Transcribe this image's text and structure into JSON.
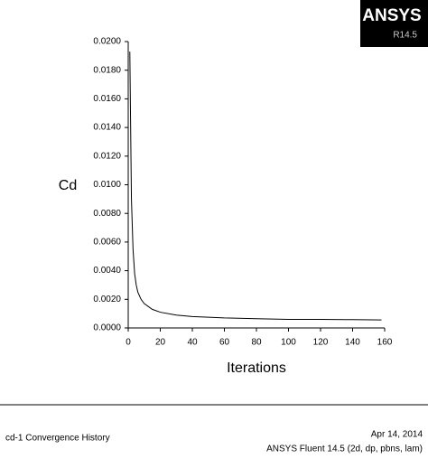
{
  "chart_data": {
    "type": "line",
    "y_label": "Cd",
    "x_label": "Iterations",
    "x": [
      1,
      2,
      3,
      4,
      5,
      6,
      8,
      10,
      15,
      20,
      30,
      40,
      60,
      80,
      100,
      120,
      140,
      158
    ],
    "series": [
      {
        "name": "cd-1",
        "color": "#000000",
        "values": [
          0.0193,
          0.009,
          0.0055,
          0.0038,
          0.003,
          0.0025,
          0.002,
          0.0017,
          0.0013,
          0.0011,
          0.0009,
          0.0008,
          0.0007,
          0.00065,
          0.0006,
          0.0006,
          0.00058,
          0.00056
        ]
      }
    ],
    "xlim": [
      0,
      160
    ],
    "xticks": [
      0,
      20,
      40,
      60,
      80,
      100,
      120,
      140,
      160
    ],
    "ylim": [
      0,
      0.02
    ],
    "yticks": [
      {
        "value": 0,
        "label": "0.0000"
      },
      {
        "value": 0.002,
        "label": "0.0020"
      },
      {
        "value": 0.004,
        "label": "0.0040"
      },
      {
        "value": 0.006,
        "label": "0.0060"
      },
      {
        "value": 0.008,
        "label": "0.0080"
      },
      {
        "value": 0.01,
        "label": "0.0100"
      },
      {
        "value": 0.012,
        "label": "0.0120"
      },
      {
        "value": 0.014,
        "label": "0.0140"
      },
      {
        "value": 0.016,
        "label": "0.0160"
      },
      {
        "value": 0.018,
        "label": "0.0180"
      },
      {
        "value": 0.02,
        "label": "0.0200"
      }
    ],
    "grid": false
  },
  "logo": {
    "brand": "ANSYS",
    "version": "R14.5"
  },
  "footer": {
    "title": "cd-1 Convergence History",
    "date": "Apr 14, 2014",
    "product": "ANSYS Fluent 14.5 (2d, dp, pbns, lam)"
  }
}
